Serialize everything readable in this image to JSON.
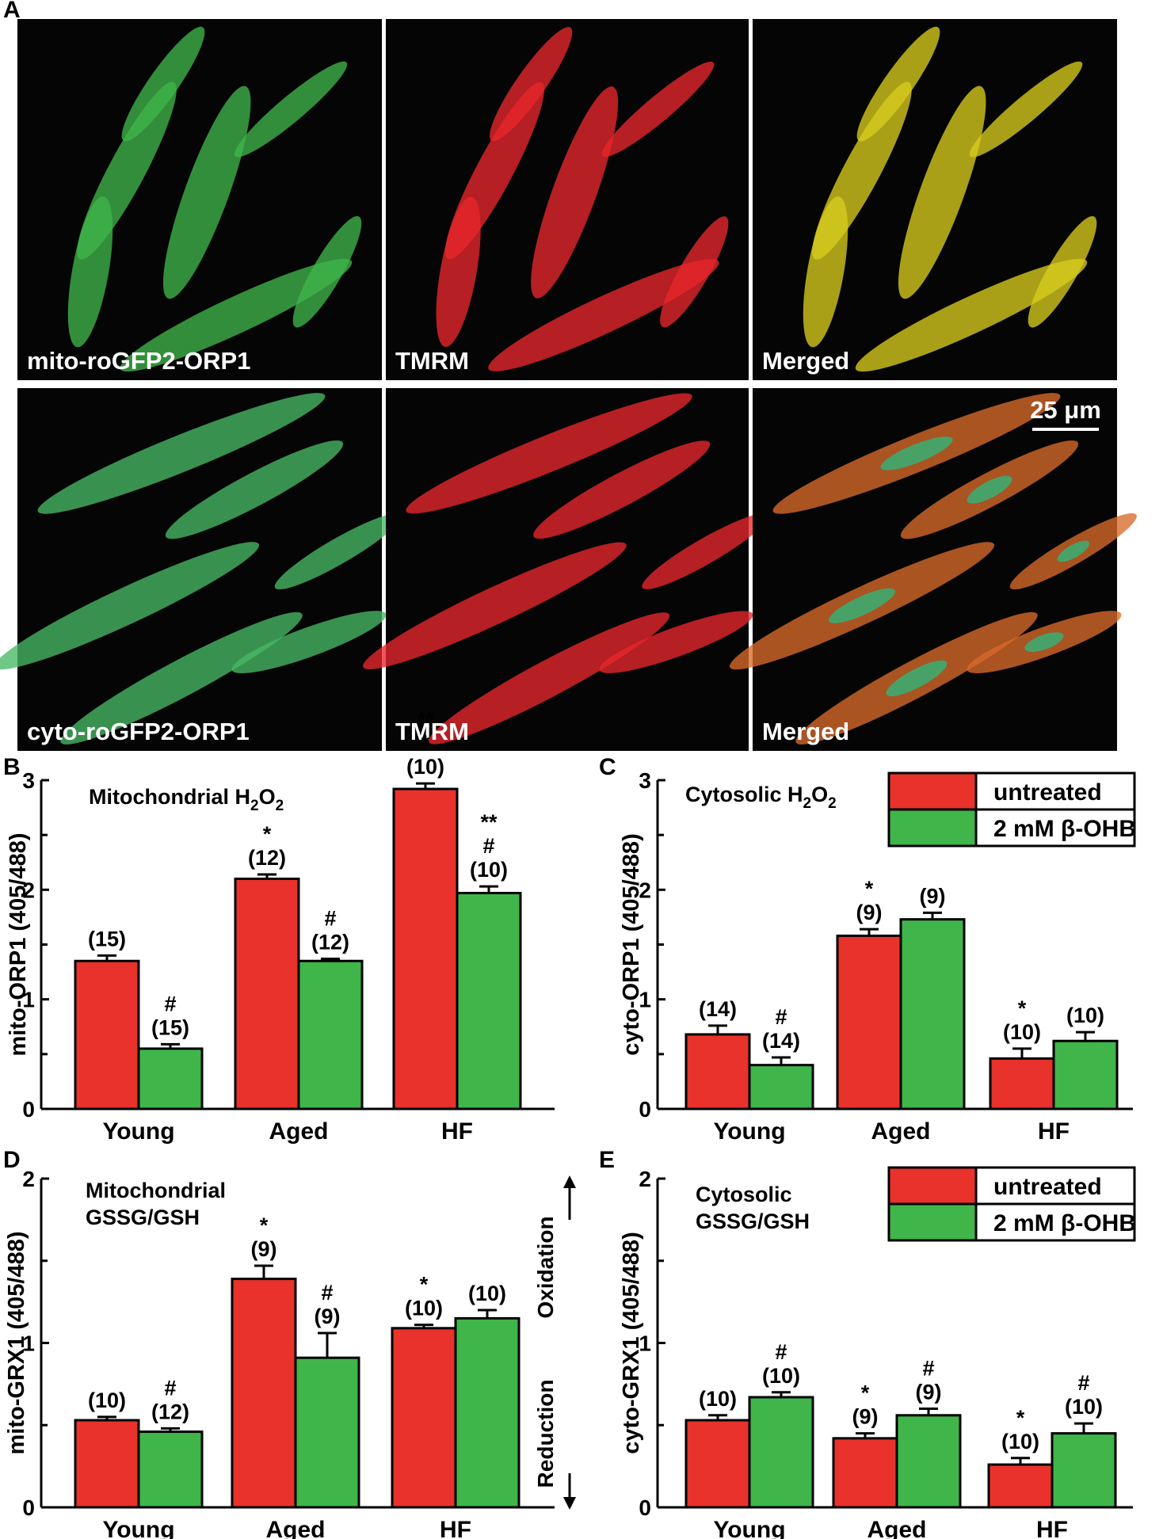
{
  "figure": {
    "panel_letters": {
      "A": "A",
      "B": "B",
      "C": "C",
      "D": "D",
      "E": "E"
    },
    "micrographs": [
      {
        "label": "mito-roGFP2-ORP1",
        "color": "#3fb54a"
      },
      {
        "label": "TMRM",
        "color": "#e8262b"
      },
      {
        "label": "Merged",
        "color": "#d8cc1e"
      },
      {
        "label": "cyto-roGFP2-ORP1",
        "color": "#48b865"
      },
      {
        "label": "TMRM",
        "color": "#e8262b"
      },
      {
        "label": "Merged",
        "color": "#d96a2a"
      }
    ],
    "scale_bar_label": "25 μm",
    "legend": {
      "untreated": "untreated",
      "treated": "2 mM β-OHB"
    },
    "arrows": {
      "up": "Oxidation",
      "down": "Reduction"
    },
    "colors": {
      "untreated": "#e8322b",
      "treated": "#3fb54a"
    }
  },
  "chart_data": [
    {
      "panel": "B",
      "type": "bar",
      "title": "Mitochondrial H2O2",
      "ylabel": "mito-ORP1 (405/488)",
      "ylim": [
        0,
        3
      ],
      "yticks": [
        "0",
        "1",
        "2",
        "3"
      ],
      "categories": [
        "Young",
        "Aged",
        "HF"
      ],
      "series": [
        {
          "name": "untreated",
          "values": [
            1.35,
            2.1,
            2.92
          ],
          "errors": [
            0.05,
            0.04,
            0.05
          ],
          "annotations": [
            [
              "(15)"
            ],
            [
              "*",
              "(12)"
            ],
            [
              "**",
              "*",
              "(10)"
            ]
          ]
        },
        {
          "name": "2 mM β-OHB",
          "values": [
            0.55,
            1.35,
            1.97
          ],
          "errors": [
            0.04,
            0.02,
            0.06
          ],
          "annotations": [
            [
              "#",
              "(15)"
            ],
            [
              "#",
              "(12)"
            ],
            [
              "**",
              "#",
              "(10)"
            ]
          ]
        }
      ]
    },
    {
      "panel": "C",
      "type": "bar",
      "title": "Cytosolic H2O2",
      "ylabel": "cyto-ORP1 (405/488)",
      "ylim": [
        0,
        3
      ],
      "yticks": [
        "0",
        "1",
        "2",
        "3"
      ],
      "categories": [
        "Young",
        "Aged",
        "HF"
      ],
      "series": [
        {
          "name": "untreated",
          "values": [
            0.68,
            1.58,
            0.46
          ],
          "errors": [
            0.08,
            0.06,
            0.09
          ],
          "annotations": [
            [
              "(14)"
            ],
            [
              "*",
              "(9)"
            ],
            [
              "*",
              "(10)"
            ]
          ]
        },
        {
          "name": "2 mM β-OHB",
          "values": [
            0.4,
            1.73,
            0.62
          ],
          "errors": [
            0.07,
            0.06,
            0.08
          ],
          "annotations": [
            [
              "#",
              "(14)"
            ],
            [
              "(9)"
            ],
            [
              "(10)"
            ]
          ]
        }
      ]
    },
    {
      "panel": "D",
      "type": "bar",
      "title": "Mitochondrial GSSG/GSH",
      "ylabel": "mito-GRX1 (405/488)",
      "ylim": [
        0,
        2
      ],
      "yticks": [
        "0",
        "1",
        "2"
      ],
      "categories": [
        "Young",
        "Aged",
        "HF"
      ],
      "series": [
        {
          "name": "untreated",
          "values": [
            0.53,
            1.39,
            1.09
          ],
          "errors": [
            0.02,
            0.08,
            0.02
          ],
          "annotations": [
            [
              "(10)"
            ],
            [
              "*",
              "(9)"
            ],
            [
              "*",
              "(10)"
            ]
          ]
        },
        {
          "name": "2 mM β-OHB",
          "values": [
            0.46,
            0.91,
            1.15
          ],
          "errors": [
            0.02,
            0.15,
            0.05
          ],
          "annotations": [
            [
              "#",
              "(12)"
            ],
            [
              "#",
              "(9)"
            ],
            [
              "(10)"
            ]
          ]
        }
      ]
    },
    {
      "panel": "E",
      "type": "bar",
      "title": "Cytosolic GSSG/GSH",
      "ylabel": "cyto-GRX1 (405/488)",
      "ylim": [
        0,
        2
      ],
      "yticks": [
        "0",
        "1",
        "2"
      ],
      "categories": [
        "Young",
        "Aged",
        "HF"
      ],
      "series": [
        {
          "name": "untreated",
          "values": [
            0.53,
            0.42,
            0.26
          ],
          "errors": [
            0.03,
            0.03,
            0.04
          ],
          "annotations": [
            [
              "(10)"
            ],
            [
              "*",
              "(9)"
            ],
            [
              "*",
              "(10)"
            ]
          ]
        },
        {
          "name": "2 mM β-OHB",
          "values": [
            0.67,
            0.56,
            0.45
          ],
          "errors": [
            0.03,
            0.04,
            0.06
          ],
          "annotations": [
            [
              "#",
              "(10)"
            ],
            [
              "#",
              "(9)"
            ],
            [
              "#",
              "(10)"
            ]
          ]
        }
      ]
    }
  ]
}
